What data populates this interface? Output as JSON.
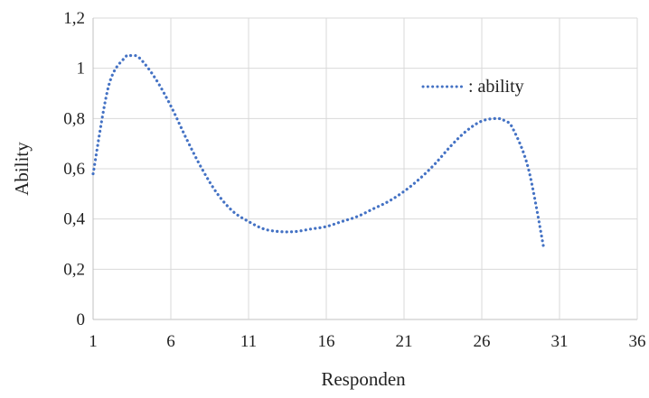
{
  "chart_data": {
    "type": "line",
    "title": "",
    "xlabel": "Responden",
    "ylabel": "Ability",
    "xlim": [
      1,
      36
    ],
    "ylim": [
      0,
      1.2
    ],
    "x_ticks": [
      "1",
      "6",
      "11",
      "16",
      "21",
      "26",
      "31",
      "36"
    ],
    "y_ticks": [
      "0",
      "0,2",
      "0,4",
      "0,6",
      "0,8",
      "1",
      "1,2"
    ],
    "grid": true,
    "legend_position": "top-right",
    "series": [
      {
        "name": ": ability",
        "color": "#4472c4",
        "line_style": "dotted",
        "smooth": true,
        "x": [
          1,
          2,
          3,
          3.5,
          4,
          5,
          6,
          7,
          8,
          9,
          10,
          11,
          12,
          13,
          14,
          15,
          16,
          17,
          18,
          19,
          20,
          21,
          22,
          23,
          24,
          25,
          26,
          27,
          27.5,
          28,
          29,
          30
        ],
        "y": [
          0.58,
          0.93,
          1.04,
          1.05,
          1.04,
          0.96,
          0.85,
          0.72,
          0.6,
          0.5,
          0.43,
          0.39,
          0.36,
          0.35,
          0.35,
          0.36,
          0.37,
          0.39,
          0.41,
          0.44,
          0.47,
          0.51,
          0.56,
          0.62,
          0.69,
          0.75,
          0.79,
          0.8,
          0.79,
          0.76,
          0.6,
          0.28
        ]
      }
    ]
  }
}
